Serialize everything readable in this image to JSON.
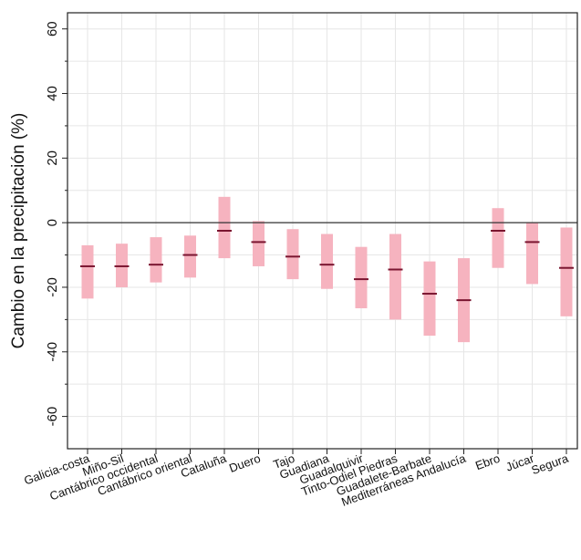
{
  "chart_data": {
    "type": "range-bar",
    "title": "",
    "xlabel": "",
    "ylabel": "Cambio en la precipitación (%)",
    "ylim": [
      -70,
      65
    ],
    "yticks": [
      -60,
      -40,
      -20,
      0,
      20,
      40,
      60
    ],
    "grid": true,
    "reference_line": 0,
    "categories": [
      "Galicia-costa",
      "Miño-Sil",
      "Cantábrico occidental",
      "Cantábrico oriental",
      "Cataluña",
      "Duero",
      "Tajo",
      "Guadiana",
      "Guadalquivir",
      "Tinto-Odiel Piedras",
      "Guadalete-Barbate",
      "Mediterráneas Andalucía",
      "Ebro",
      "Júcar",
      "Segura"
    ],
    "series": [
      {
        "name": "",
        "values": [
          -13.5,
          -13.5,
          -13,
          -10,
          -2.5,
          -6,
          -10.5,
          -13,
          -17.5,
          -14.5,
          -22,
          -24,
          -2.5,
          -6,
          -14
        ]
      }
    ],
    "low": [
      -23.5,
      -20,
      -18.5,
      -17,
      -11,
      -13.5,
      -17.5,
      -20.5,
      -26.5,
      -30,
      -35,
      -37,
      -14,
      -19,
      -29
    ],
    "high": [
      -7,
      -6.5,
      -4.5,
      -4,
      8,
      0.5,
      -2,
      -3.5,
      -7.5,
      -3.5,
      -12,
      -11,
      4.5,
      0,
      -1.5
    ],
    "colors": {
      "range": "#f6b3bf",
      "median": "#7a1530",
      "grid": "#e6e6e6",
      "zero_line": "#333333",
      "axis": "#222222"
    }
  }
}
